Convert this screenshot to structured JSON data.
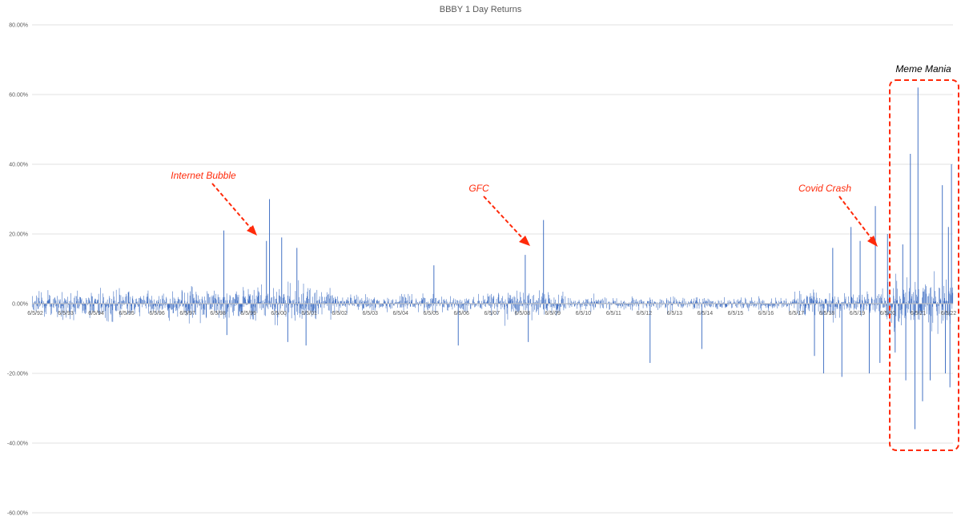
{
  "chart_data": {
    "type": "bar",
    "title": "BBBY 1 Day Returns",
    "xlabel": "",
    "ylabel": "",
    "ylim": [
      -60,
      80
    ],
    "y_tick_labels": [
      "80.00%",
      "60.00%",
      "40.00%",
      "20.00%",
      "0.00%",
      "-20.00%",
      "-40.00%",
      "-60.00%"
    ],
    "y_tick_values": [
      80,
      60,
      40,
      20,
      0,
      -20,
      -40,
      -60
    ],
    "x_tick_labels": [
      "6/5/92",
      "6/5/93",
      "6/5/94",
      "6/5/95",
      "6/5/96",
      "6/5/97",
      "6/5/98",
      "6/5/99",
      "6/5/00",
      "6/5/01",
      "6/5/02",
      "6/5/03",
      "6/5/04",
      "6/5/05",
      "6/5/06",
      "6/5/07",
      "6/5/08",
      "6/5/09",
      "6/5/10",
      "6/5/11",
      "6/5/12",
      "6/5/13",
      "6/5/14",
      "6/5/15",
      "6/5/16",
      "6/5/17",
      "6/5/18",
      "6/5/19",
      "6/5/20",
      "6/5/21",
      "6/5/22"
    ],
    "x_tick_years": [
      1992,
      1993,
      1994,
      1995,
      1996,
      1997,
      1998,
      1999,
      2000,
      2001,
      2002,
      2003,
      2004,
      2005,
      2006,
      2007,
      2008,
      2009,
      2010,
      2011,
      2012,
      2013,
      2014,
      2015,
      2016,
      2017,
      2018,
      2019,
      2020,
      2021,
      2022
    ],
    "x_range_years": [
      1992.0,
      2022.25
    ],
    "series_color": "#4472C4",
    "grid": "horizontal",
    "volatility_regimes": [
      {
        "from": 1992,
        "to": 1999,
        "typical_abs_pct": 3.5
      },
      {
        "from": 1999,
        "to": 2002,
        "typical_abs_pct": 4.5
      },
      {
        "from": 2002,
        "to": 2007,
        "typical_abs_pct": 2.0
      },
      {
        "from": 2007,
        "to": 2009.5,
        "typical_abs_pct": 3.0
      },
      {
        "from": 2009.5,
        "to": 2017,
        "typical_abs_pct": 1.5
      },
      {
        "from": 2017,
        "to": 2020,
        "typical_abs_pct": 3.0
      },
      {
        "from": 2020,
        "to": 2022.25,
        "typical_abs_pct": 7.0
      }
    ],
    "notable_returns": [
      {
        "year": 1998.3,
        "value": 21
      },
      {
        "year": 1998.4,
        "value": -9
      },
      {
        "year": 1999.8,
        "value": 30
      },
      {
        "year": 1999.7,
        "value": 18
      },
      {
        "year": 2000.2,
        "value": 19
      },
      {
        "year": 2000.4,
        "value": -11
      },
      {
        "year": 2000.7,
        "value": 16
      },
      {
        "year": 2001.0,
        "value": -12
      },
      {
        "year": 2005.2,
        "value": 11
      },
      {
        "year": 2006.0,
        "value": -12
      },
      {
        "year": 2008.2,
        "value": 14
      },
      {
        "year": 2008.3,
        "value": -11
      },
      {
        "year": 2008.8,
        "value": 24
      },
      {
        "year": 2012.3,
        "value": -17
      },
      {
        "year": 2014.0,
        "value": -13
      },
      {
        "year": 2017.7,
        "value": -15
      },
      {
        "year": 2018.0,
        "value": -20
      },
      {
        "year": 2018.3,
        "value": 16
      },
      {
        "year": 2018.6,
        "value": -21
      },
      {
        "year": 2018.9,
        "value": 22
      },
      {
        "year": 2019.2,
        "value": 18
      },
      {
        "year": 2019.5,
        "value": -20
      },
      {
        "year": 2019.7,
        "value": 28
      },
      {
        "year": 2019.85,
        "value": -17
      },
      {
        "year": 2020.1,
        "value": 20
      },
      {
        "year": 2020.35,
        "value": -14
      },
      {
        "year": 2020.6,
        "value": 17
      },
      {
        "year": 2020.7,
        "value": -22
      },
      {
        "year": 2020.85,
        "value": 43
      },
      {
        "year": 2021.1,
        "value": 62
      },
      {
        "year": 2021.0,
        "value": -36
      },
      {
        "year": 2021.25,
        "value": -28
      },
      {
        "year": 2021.5,
        "value": -22
      },
      {
        "year": 2021.9,
        "value": 34
      },
      {
        "year": 2022.0,
        "value": -20
      },
      {
        "year": 2022.1,
        "value": 22
      },
      {
        "year": 2022.2,
        "value": 40
      },
      {
        "year": 2022.15,
        "value": -24
      }
    ]
  },
  "annotations": [
    {
      "label": "Internet Bubble",
      "color": "#FF2A0A"
    },
    {
      "label": "GFC",
      "color": "#FF2A0A"
    },
    {
      "label": "Covid Crash",
      "color": "#FF2A0A"
    },
    {
      "label": "Meme Mania",
      "color": "#000000"
    }
  ],
  "box_color": "#FF2A0A"
}
